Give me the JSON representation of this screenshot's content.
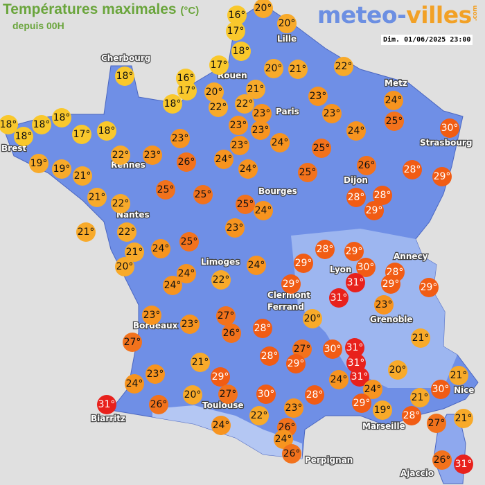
{
  "header": {
    "title": "Températures maximales",
    "unit": "(°C)",
    "subtitle": "depuis 00H",
    "logo_main": "meteo-",
    "logo_accent": "villes",
    "logo_tld": ".com",
    "datetime": "Dim. 01/06/2025 23:00"
  },
  "colors": {
    "background": "#e0e0e0",
    "land": "#6f8fe6",
    "title": "#6aa53c",
    "scale": {
      "le18": "#f9c82c",
      "19_22": "#f8aa2a",
      "23_24": "#f7941f",
      "25_27": "#f2721c",
      "28_30": "#f15c14",
      "31": "#e8211c"
    }
  },
  "cities": [
    "Cherbourg",
    "Lille",
    "Rouen",
    "Metz",
    "Paris",
    "Brest",
    "Rennes",
    "Strasbourg",
    "Dijon",
    "Bourges",
    "Nantes",
    "Annecy",
    "Lyon",
    "Limoges",
    "Clermont",
    "Ferrand",
    "Grenoble",
    "Bordeaux",
    "Toulouse",
    "Nice",
    "Biarritz",
    "Marseille",
    "Perpignan",
    "Ajaccio"
  ],
  "temperatures": [
    16,
    20,
    17,
    20,
    18,
    17,
    20,
    21,
    22,
    16,
    17,
    20,
    21,
    18,
    18,
    22,
    22,
    23,
    23,
    23,
    24,
    25,
    23,
    23,
    24,
    24,
    30,
    18,
    18,
    18,
    18,
    17,
    18,
    23,
    23,
    25,
    19,
    22,
    23,
    26,
    24,
    24,
    25,
    26,
    28,
    29,
    19,
    21,
    25,
    25,
    25,
    24,
    28,
    28,
    29,
    21,
    22,
    21,
    22,
    23,
    25,
    28,
    29,
    21,
    24,
    20,
    24,
    29,
    30,
    28,
    24,
    24,
    22,
    29,
    31,
    29,
    29,
    31,
    23,
    23,
    23,
    27,
    20,
    26,
    28,
    21,
    27,
    27,
    28,
    29,
    30,
    31,
    31,
    31,
    20,
    21,
    23,
    29,
    24,
    21,
    24,
    27,
    30,
    24,
    30,
    21,
    20,
    26,
    23,
    28,
    29,
    19,
    31,
    22,
    24,
    28,
    27,
    21,
    26,
    24,
    26,
    26,
    31
  ]
}
